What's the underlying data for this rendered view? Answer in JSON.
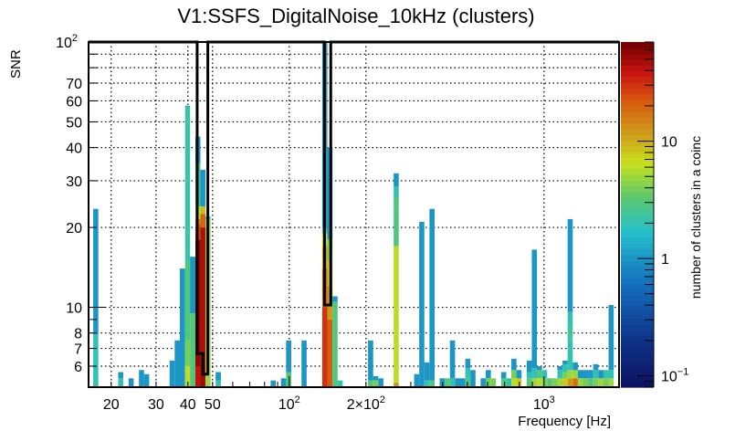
{
  "chart_data": {
    "type": "heatmap",
    "title": "V1:SSFS_DigitalNoise_10kHz (clusters)",
    "xlabel": "Frequency [Hz]",
    "ylabel": "SNR",
    "xscale": "log",
    "yscale": "log",
    "xlim": [
      16.3,
      1970
    ],
    "ylim": [
      5.0,
      100
    ],
    "grid": true,
    "x_tick_labels": [
      {
        "value": 20,
        "label": "20"
      },
      {
        "value": 30,
        "label": "30"
      },
      {
        "value": 40,
        "label": "40"
      },
      {
        "value": 50,
        "label": "50"
      },
      {
        "value": 100,
        "label": "10",
        "exp": "2"
      },
      {
        "value": 200,
        "label": "2×10",
        "exp": "2"
      },
      {
        "value": 1000,
        "label": "10",
        "exp": "3"
      }
    ],
    "y_tick_labels": [
      {
        "value": 6,
        "label": "6"
      },
      {
        "value": 7,
        "label": "7"
      },
      {
        "value": 8,
        "label": "8"
      },
      {
        "value": 10,
        "label": "10"
      },
      {
        "value": 20,
        "label": "20"
      },
      {
        "value": 30,
        "label": "30"
      },
      {
        "value": 40,
        "label": "40"
      },
      {
        "value": 50,
        "label": "50"
      },
      {
        "value": 60,
        "label": "60"
      },
      {
        "value": 70,
        "label": "70"
      },
      {
        "value": 100,
        "label": "10",
        "exp": "2"
      }
    ],
    "colorbar": {
      "label": "number of clusters in a coinc",
      "scale": "log",
      "range": [
        0.08,
        70
      ],
      "tick_labels": [
        {
          "value": 0.1,
          "label": "10",
          "exp": "−1"
        },
        {
          "value": 1,
          "label": "1"
        },
        {
          "value": 10,
          "label": "10"
        }
      ]
    },
    "bins_note": "columns: [freq_lo_Hz, freq_hi_Hz, [[snr_lo, snr_hi, count], ...]]",
    "columns": [
      [
        17.0,
        17.8,
        [
          [
            5.0,
            7.9,
            2
          ],
          [
            7.9,
            23.5,
            1
          ]
        ]
      ],
      [
        21.3,
        22.3,
        [
          [
            5.0,
            5.4,
            2
          ],
          [
            5.4,
            5.7,
            1
          ]
        ]
      ],
      [
        23.4,
        24.5,
        [
          [
            5.0,
            5.4,
            1
          ]
        ]
      ],
      [
        25.7,
        26.9,
        [
          [
            5.0,
            5.8,
            1
          ]
        ]
      ],
      [
        26.9,
        28.2,
        [
          [
            5.0,
            5.6,
            1
          ]
        ]
      ],
      [
        33.9,
        35.5,
        [
          [
            5.0,
            6.3,
            1
          ]
        ]
      ],
      [
        35.5,
        37.2,
        [
          [
            5.0,
            7.5,
            1
          ]
        ]
      ],
      [
        37.2,
        39.0,
        [
          [
            5.0,
            8.0,
            1
          ],
          [
            8.0,
            14.0,
            1
          ],
          [
            8.0,
            7.4,
            1
          ]
        ]
      ],
      [
        39.0,
        40.8,
        [
          [
            5.0,
            6.0,
            6
          ],
          [
            6.0,
            6.9,
            5
          ],
          [
            6.0,
            7.5,
            4
          ],
          [
            7.5,
            15.0,
            3
          ],
          [
            15.0,
            57.0,
            2.2
          ],
          [
            57.0,
            57.5,
            1
          ]
        ]
      ],
      [
        40.8,
        42.8,
        [
          [
            5.0,
            15.5,
            3
          ],
          [
            15.5,
            9.5,
            1
          ]
        ]
      ],
      [
        42.8,
        44.8,
        [
          [
            5.0,
            6.0,
            40
          ],
          [
            6.0,
            18,
            55
          ],
          [
            18,
            20.5,
            25
          ],
          [
            20.5,
            21.5,
            15
          ],
          [
            21.5,
            24,
            6
          ],
          [
            24,
            35,
            2.2
          ],
          [
            35,
            44,
            1
          ]
        ]
      ],
      [
        44.8,
        46.9,
        [
          [
            5.0,
            6.0,
            50
          ],
          [
            6.0,
            20.0,
            45
          ],
          [
            20.0,
            22.5,
            20
          ],
          [
            22.5,
            24.0,
            9
          ],
          [
            24.0,
            33.0,
            1
          ]
        ]
      ],
      [
        46.9,
        49.1,
        [
          [
            5.0,
            21.5,
            5
          ],
          [
            21.5,
            22.0,
            2
          ]
        ]
      ],
      [
        51.4,
        53.9,
        [
          [
            5.0,
            5.3,
            2
          ],
          [
            5.3,
            5.7,
            1
          ]
        ]
      ],
      [
        84.5,
        88.5,
        [
          [
            5.0,
            5.3,
            1
          ]
        ]
      ],
      [
        92.8,
        97.2,
        [
          [
            5.0,
            5.4,
            1
          ]
        ]
      ],
      [
        97.2,
        101.8,
        [
          [
            5.0,
            5.7,
            3
          ],
          [
            5.7,
            7.5,
            1
          ]
        ]
      ],
      [
        111.7,
        117.0,
        [
          [
            5.0,
            7.5,
            1
          ]
        ]
      ],
      [
        134.7,
        141.1,
        [
          [
            5.0,
            10.0,
            30
          ],
          [
            10.0,
            14,
            20
          ],
          [
            14,
            17,
            12
          ],
          [
            17,
            19,
            6
          ],
          [
            19,
            19.8,
            2
          ],
          [
            19.8,
            100,
            1
          ]
        ]
      ],
      [
        141.1,
        147.8,
        [
          [
            5.0,
            9.0,
            22
          ],
          [
            9.0,
            12,
            12
          ],
          [
            12,
            15,
            8
          ],
          [
            15,
            18,
            4
          ],
          [
            18,
            40,
            1
          ]
        ]
      ],
      [
        147.8,
        154.8,
        [
          [
            5.0,
            10.5,
            3
          ],
          [
            10.5,
            11.0,
            1
          ]
        ]
      ],
      [
        154.8,
        162.1,
        [
          [
            5.0,
            5.3,
            2
          ]
        ]
      ],
      [
        203.8,
        213.5,
        [
          [
            5.0,
            5.3,
            3
          ],
          [
            5.3,
            7.5,
            1
          ]
        ]
      ],
      [
        213.5,
        223.6,
        [
          [
            5.0,
            5.3,
            4
          ],
          [
            5.3,
            5.5,
            1
          ]
        ]
      ],
      [
        223.6,
        234.2,
        [
          [
            5.0,
            5.4,
            1
          ]
        ]
      ],
      [
        256.9,
        269.0,
        [
          [
            5.0,
            5.2,
            12
          ],
          [
            5.2,
            17.0,
            6
          ],
          [
            17.0,
            26,
            3
          ],
          [
            26,
            28.5,
            2
          ],
          [
            28.5,
            32,
            1
          ]
        ]
      ],
      [
        309.1,
        323.7,
        [
          [
            5.0,
            5.6,
            1
          ]
        ]
      ],
      [
        323.7,
        339.0,
        [
          [
            5.0,
            21.0,
            1
          ]
        ]
      ],
      [
        339.0,
        355.0,
        [
          [
            5.0,
            5.3,
            2
          ],
          [
            5.3,
            6.2,
            1
          ]
        ]
      ],
      [
        355.0,
        371.9,
        [
          [
            5.0,
            5.3,
            3
          ],
          [
            5.3,
            23.5,
            1
          ]
        ]
      ],
      [
        389.5,
        407.9,
        [
          [
            5.0,
            5.4,
            1
          ]
        ]
      ],
      [
        407.9,
        427.2,
        [
          [
            5.0,
            5.4,
            3
          ]
        ]
      ],
      [
        427.2,
        447.4,
        [
          [
            5.0,
            5.4,
            2
          ],
          [
            5.4,
            7.5,
            1
          ]
        ]
      ],
      [
        447.4,
        468.6,
        [
          [
            5.0,
            5.4,
            1
          ]
        ]
      ],
      [
        468.6,
        490.8,
        [
          [
            5.0,
            5.4,
            1
          ]
        ]
      ],
      [
        490.8,
        514.0,
        [
          [
            5.0,
            5.4,
            3
          ],
          [
            5.4,
            5.9,
            2
          ],
          [
            5.9,
            6.4,
            1
          ]
        ]
      ],
      [
        514.0,
        538.3,
        [
          [
            5.0,
            5.8,
            1
          ]
        ]
      ],
      [
        563.8,
        590.5,
        [
          [
            5.0,
            5.4,
            1
          ]
        ]
      ],
      [
        590.5,
        618.5,
        [
          [
            5.0,
            5.4,
            4
          ],
          [
            5.4,
            5.8,
            1
          ]
        ]
      ],
      [
        618.5,
        647.8,
        [
          [
            5.0,
            5.4,
            4
          ]
        ]
      ],
      [
        678.5,
        710.6,
        [
          [
            5.0,
            5.4,
            3
          ],
          [
            5.4,
            5.7,
            1
          ]
        ]
      ],
      [
        710.6,
        744.2,
        [
          [
            5.0,
            5.4,
            2
          ]
        ]
      ],
      [
        744.2,
        779.4,
        [
          [
            5.0,
            5.4,
            6
          ],
          [
            5.4,
            5.8,
            4
          ],
          [
            5.8,
            6.4,
            1
          ]
        ]
      ],
      [
        779.4,
        816.3,
        [
          [
            5.0,
            5.4,
            8
          ],
          [
            5.4,
            5.8,
            1
          ]
        ]
      ],
      [
        855.0,
        895.4,
        [
          [
            5.0,
            5.4,
            3
          ],
          [
            5.4,
            5.7,
            2
          ],
          [
            5.7,
            6.3,
            1
          ]
        ]
      ],
      [
        895.4,
        937.8,
        [
          [
            5.0,
            5.4,
            5
          ],
          [
            5.4,
            5.9,
            2
          ],
          [
            5.9,
            16.5,
            1
          ]
        ]
      ],
      [
        937.8,
        982.2,
        [
          [
            5.0,
            5.4,
            6
          ],
          [
            5.4,
            5.8,
            3
          ],
          [
            5.8,
            6.0,
            1
          ]
        ]
      ],
      [
        982.2,
        1028.7,
        [
          [
            5.0,
            5.4,
            4
          ],
          [
            5.4,
            5.8,
            2
          ]
        ]
      ],
      [
        1028.7,
        1077.4,
        [
          [
            5.0,
            5.4,
            3
          ]
        ]
      ],
      [
        1077.4,
        1128.4,
        [
          [
            5.0,
            5.4,
            4
          ]
        ]
      ],
      [
        1128.4,
        1181.8,
        [
          [
            5.0,
            5.4,
            5
          ],
          [
            5.4,
            5.8,
            2
          ],
          [
            5.8,
            6.0,
            1
          ]
        ]
      ],
      [
        1181.8,
        1237.8,
        [
          [
            5.0,
            5.4,
            8
          ],
          [
            5.4,
            5.7,
            4
          ],
          [
            5.7,
            6.1,
            2
          ],
          [
            6.1,
            6.3,
            1
          ]
        ]
      ],
      [
        1237.8,
        1296.4,
        [
          [
            5.0,
            5.4,
            12
          ],
          [
            5.4,
            5.8,
            5
          ],
          [
            5.8,
            6.6,
            2
          ],
          [
            6.6,
            7.5,
            2
          ],
          [
            7.5,
            8.5,
            2.4
          ],
          [
            8.5,
            9.6,
            2
          ],
          [
            9.6,
            21.5,
            1
          ]
        ]
      ],
      [
        1296.4,
        1357.8,
        [
          [
            5.0,
            5.4,
            18
          ],
          [
            5.4,
            5.8,
            5
          ],
          [
            5.8,
            6.2,
            1
          ]
        ]
      ],
      [
        1357.8,
        1422.1,
        [
          [
            5.0,
            5.4,
            5
          ],
          [
            5.4,
            5.8,
            1
          ]
        ]
      ],
      [
        1422.1,
        1489.4,
        [
          [
            5.0,
            5.4,
            4
          ],
          [
            5.4,
            5.8,
            1
          ]
        ]
      ],
      [
        1489.4,
        1559.9,
        [
          [
            5.0,
            5.4,
            3
          ],
          [
            5.4,
            5.8,
            1
          ]
        ]
      ],
      [
        1559.9,
        1633.8,
        [
          [
            5.0,
            5.4,
            4
          ],
          [
            5.4,
            5.8,
            2
          ],
          [
            5.8,
            6.1,
            1
          ]
        ]
      ],
      [
        1633.8,
        1711.2,
        [
          [
            5.0,
            5.4,
            5
          ],
          [
            5.4,
            5.8,
            1
          ]
        ]
      ],
      [
        1711.2,
        1792.2,
        [
          [
            5.0,
            5.4,
            4
          ],
          [
            5.4,
            5.8,
            2
          ]
        ]
      ],
      [
        1792.2,
        1877.1,
        [
          [
            5.0,
            5.4,
            5
          ],
          [
            5.4,
            5.8,
            2
          ],
          [
            5.8,
            10.2,
            1
          ]
        ]
      ]
    ],
    "outline_note": "black step outline: [freq_lo_Hz, freq_hi_Hz, snr_max]",
    "outline": [
      [
        16.3,
        43.5,
        100
      ],
      [
        43.5,
        45.8,
        6.7
      ],
      [
        45.8,
        47.9,
        5.6
      ],
      [
        47.9,
        137.5,
        100
      ],
      [
        137.5,
        145.5,
        10.2
      ],
      [
        145.5,
        1970,
        100
      ]
    ]
  }
}
